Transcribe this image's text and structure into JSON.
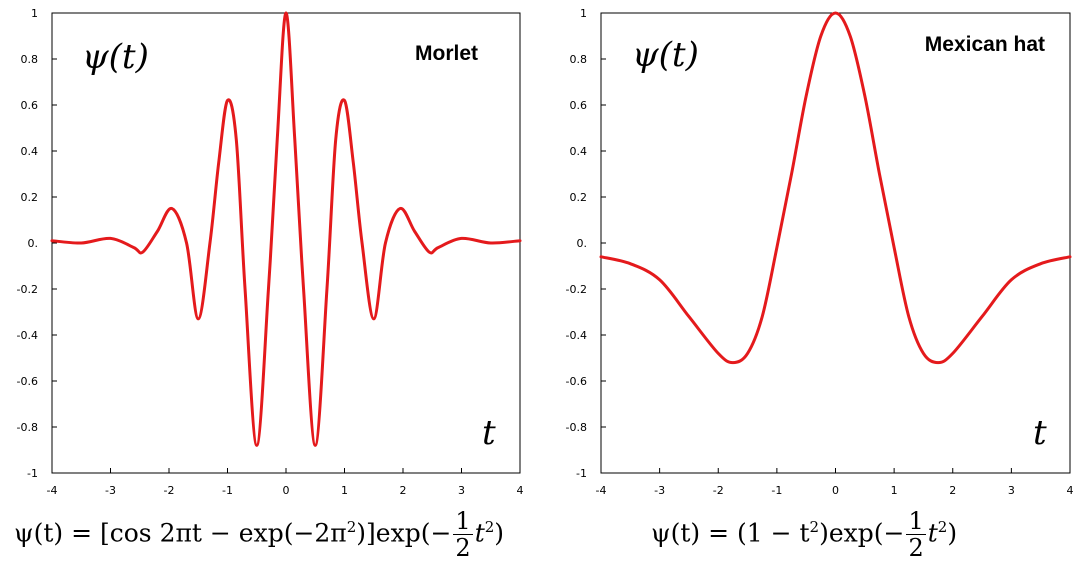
{
  "colors": {
    "curve": "#e41a1c",
    "axis": "#000000",
    "text": "#000000"
  },
  "chart_data": [
    {
      "type": "line",
      "title": "Morlet",
      "ylabel": "ψ(t)",
      "xlabel": "t",
      "xlim": [
        -4,
        4
      ],
      "ylim": [
        -1,
        1
      ],
      "xticks": [
        -4,
        -3,
        -2,
        -1,
        0,
        1,
        2,
        3,
        4
      ],
      "xtick_labels": [
        "-4",
        "-3",
        "-2",
        "-1",
        "0",
        "1",
        "2",
        "3",
        "4"
      ],
      "yticks": [
        1,
        0.8,
        0.6,
        0.4,
        0.2,
        0,
        -0.2,
        -0.4,
        -0.6,
        -0.8,
        -1
      ],
      "ytick_labels": [
        "1",
        "0.8",
        "0.6",
        "0.4",
        "0.2",
        "0.",
        "-0.2",
        "-0.4",
        "-0.6",
        "-0.8",
        "-1"
      ],
      "grid": false,
      "series": [
        {
          "x": [
            -4,
            -3.5,
            -3.0,
            -2.6,
            -2.45,
            -2.2,
            -1.95,
            -1.7,
            -1.5,
            -1.3,
            -1.15,
            -1.0,
            -0.85,
            -0.7,
            -0.5,
            -0.3,
            -0.15,
            0,
            0.15,
            0.3,
            0.5,
            0.7,
            0.85,
            1.0,
            1.15,
            1.3,
            1.5,
            1.7,
            1.95,
            2.2,
            2.45,
            2.6,
            3.0,
            3.5,
            4
          ],
          "y": [
            0.01,
            0.0,
            0.02,
            -0.02,
            -0.04,
            0.05,
            0.15,
            0.0,
            -0.33,
            0.0,
            0.35,
            0.62,
            0.45,
            -0.2,
            -0.88,
            -0.2,
            0.45,
            1.0,
            0.45,
            -0.2,
            -0.88,
            -0.2,
            0.45,
            0.62,
            0.35,
            0.0,
            -0.33,
            0.0,
            0.15,
            0.05,
            -0.04,
            -0.02,
            0.02,
            0.0,
            0.01
          ]
        }
      ],
      "formula": {
        "lhs": "ψ(t) = [cos 2πt − exp(−2π",
        "sup1": "2",
        "mid": ")]exp(−",
        "num": "1",
        "den": "2",
        "t": "t",
        "sup2": "2",
        "end": ")"
      }
    },
    {
      "type": "line",
      "title": "Mexican hat",
      "ylabel": "ψ(t)",
      "xlabel": "t",
      "xlim": [
        -4,
        4
      ],
      "ylim": [
        -1,
        1
      ],
      "xticks": [
        -4,
        -3,
        -2,
        -1,
        0,
        1,
        2,
        3,
        4
      ],
      "xtick_labels": [
        "-4",
        "-3",
        "-2",
        "-1",
        "0",
        "1",
        "2",
        "3",
        "4"
      ],
      "yticks": [
        1,
        0.8,
        0.6,
        0.4,
        0.2,
        0,
        -0.2,
        -0.4,
        -0.6,
        -0.8,
        -1
      ],
      "ytick_labels": [
        "1",
        "0.8",
        "0.6",
        "0.4",
        "0.2",
        "0.",
        "-0.2",
        "-0.4",
        "-0.6",
        "-0.8",
        "-1"
      ],
      "grid": false,
      "series": [
        {
          "x": [
            -4,
            -3.5,
            -3.0,
            -2.5,
            -2.0,
            -1.75,
            -1.5,
            -1.25,
            -1.0,
            -0.75,
            -0.5,
            -0.25,
            0,
            0.25,
            0.5,
            0.75,
            1.0,
            1.25,
            1.5,
            1.75,
            2.0,
            2.5,
            3.0,
            3.5,
            4
          ],
          "y": [
            -0.06,
            -0.09,
            -0.16,
            -0.32,
            -0.48,
            -0.52,
            -0.48,
            -0.32,
            -0.02,
            0.3,
            0.64,
            0.9,
            1.0,
            0.9,
            0.64,
            0.3,
            -0.02,
            -0.32,
            -0.48,
            -0.52,
            -0.48,
            -0.32,
            -0.16,
            -0.09,
            -0.06
          ]
        }
      ],
      "formula": {
        "lhs": "ψ(t) = (1 − t",
        "sup1": "2",
        "mid": ")exp(−",
        "num": "1",
        "den": "2",
        "t": "t",
        "sup2": "2",
        "end": ")"
      }
    }
  ]
}
